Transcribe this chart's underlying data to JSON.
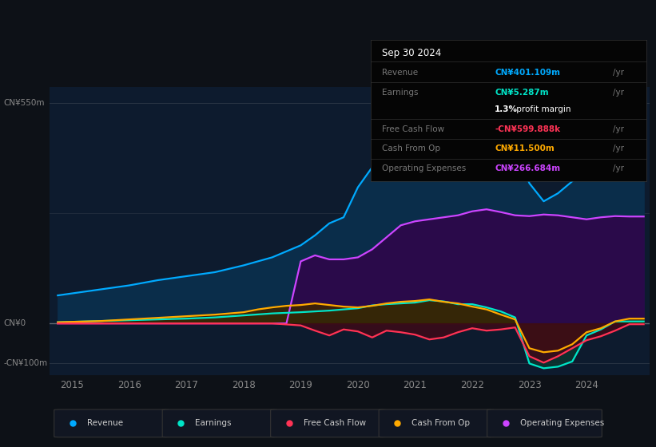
{
  "bg_color": "#0d1117",
  "plot_bg_color": "#0d1b2e",
  "ylabel_top": "CN¥550m",
  "ylabel_zero": "CN¥0",
  "ylabel_neg": "-CN¥100m",
  "x_years": [
    2015,
    2016,
    2017,
    2018,
    2019,
    2020,
    2021,
    2022,
    2023,
    2024
  ],
  "ylim": [
    -130,
    590
  ],
  "xlim": [
    2014.6,
    2025.1
  ],
  "info_box": {
    "date": "Sep 30 2024",
    "rows": [
      {
        "label": "Revenue",
        "value": "CN¥401.109m",
        "color": "#00aaff"
      },
      {
        "label": "Earnings",
        "value": "CN¥5.287m",
        "color": "#00e5c8"
      },
      {
        "label": "",
        "value": "1.3% profit margin",
        "color": "#ffffff"
      },
      {
        "label": "Free Cash Flow",
        "value": "-CN¥599.888k",
        "color": "#ff3355"
      },
      {
        "label": "Cash From Op",
        "value": "CN¥11.500m",
        "color": "#ffaa00"
      },
      {
        "label": "Operating Expenses",
        "value": "CN¥266.684m",
        "color": "#cc44ff"
      }
    ]
  },
  "legend": [
    {
      "label": "Revenue",
      "color": "#00aaff"
    },
    {
      "label": "Earnings",
      "color": "#00e5c8"
    },
    {
      "label": "Free Cash Flow",
      "color": "#ff3355"
    },
    {
      "label": "Cash From Op",
      "color": "#ffaa00"
    },
    {
      "label": "Operating Expenses",
      "color": "#cc44ff"
    }
  ],
  "revenue_x": [
    2014.75,
    2015.0,
    2015.5,
    2016.0,
    2016.5,
    2017.0,
    2017.5,
    2018.0,
    2018.5,
    2019.0,
    2019.25,
    2019.5,
    2019.75,
    2020.0,
    2020.25,
    2020.5,
    2020.75,
    2021.0,
    2021.25,
    2021.5,
    2021.75,
    2022.0,
    2022.25,
    2022.5,
    2022.75,
    2023.0,
    2023.25,
    2023.5,
    2023.75,
    2024.0,
    2024.25,
    2024.5,
    2024.75,
    2025.0
  ],
  "revenue_y": [
    70,
    75,
    85,
    95,
    108,
    118,
    128,
    145,
    165,
    195,
    220,
    250,
    265,
    340,
    390,
    430,
    455,
    475,
    495,
    515,
    545,
    555,
    530,
    490,
    440,
    350,
    305,
    325,
    355,
    395,
    415,
    415,
    401,
    401
  ],
  "revenue_color": "#00aaff",
  "revenue_fill": "#0a2d4a",
  "op_exp_x": [
    2014.75,
    2015.0,
    2015.5,
    2016.0,
    2016.5,
    2017.0,
    2017.5,
    2018.0,
    2018.5,
    2018.75,
    2019.0,
    2019.25,
    2019.5,
    2019.75,
    2020.0,
    2020.25,
    2020.5,
    2020.75,
    2021.0,
    2021.25,
    2021.5,
    2021.75,
    2022.0,
    2022.25,
    2022.5,
    2022.75,
    2023.0,
    2023.25,
    2023.5,
    2023.75,
    2024.0,
    2024.25,
    2024.5,
    2024.75,
    2025.0
  ],
  "op_exp_y": [
    0,
    0,
    0,
    0,
    0,
    0,
    0,
    0,
    0,
    0,
    155,
    170,
    160,
    160,
    165,
    185,
    215,
    245,
    255,
    260,
    265,
    270,
    280,
    285,
    278,
    270,
    268,
    272,
    270,
    265,
    260,
    265,
    268,
    267,
    267
  ],
  "op_exp_color": "#cc44ff",
  "op_exp_fill": "#2a0a4a",
  "earnings_x": [
    2014.75,
    2015.0,
    2015.5,
    2016.0,
    2016.5,
    2017.0,
    2017.5,
    2018.0,
    2018.5,
    2019.0,
    2019.5,
    2020.0,
    2020.25,
    2020.5,
    2020.75,
    2021.0,
    2021.25,
    2021.5,
    2021.75,
    2022.0,
    2022.25,
    2022.5,
    2022.75,
    2023.0,
    2023.25,
    2023.5,
    2023.75,
    2024.0,
    2024.25,
    2024.5,
    2024.75,
    2025.0
  ],
  "earnings_y": [
    3,
    4,
    6,
    8,
    10,
    12,
    15,
    20,
    25,
    28,
    32,
    38,
    45,
    48,
    50,
    52,
    58,
    55,
    48,
    48,
    40,
    30,
    15,
    -100,
    -112,
    -108,
    -95,
    -30,
    -15,
    5,
    5,
    5
  ],
  "earnings_color": "#00e5c8",
  "earnings_fill": "#0a3530",
  "cop_x": [
    2014.75,
    2015.0,
    2015.5,
    2016.0,
    2016.5,
    2017.0,
    2017.5,
    2018.0,
    2018.25,
    2018.5,
    2018.75,
    2019.0,
    2019.25,
    2019.5,
    2019.75,
    2020.0,
    2020.25,
    2020.5,
    2020.75,
    2021.0,
    2021.25,
    2021.5,
    2021.75,
    2022.0,
    2022.25,
    2022.5,
    2022.75,
    2023.0,
    2023.25,
    2023.5,
    2023.75,
    2024.0,
    2024.25,
    2024.5,
    2024.75,
    2025.0
  ],
  "cop_y": [
    3,
    4,
    6,
    10,
    14,
    18,
    22,
    28,
    35,
    40,
    44,
    46,
    50,
    46,
    42,
    40,
    44,
    50,
    54,
    56,
    60,
    54,
    50,
    42,
    35,
    22,
    10,
    -62,
    -72,
    -68,
    -52,
    -22,
    -12,
    5,
    12,
    12
  ],
  "cop_color": "#ffaa00",
  "cop_fill": "#3d2500",
  "fcf_x": [
    2014.75,
    2015.0,
    2015.5,
    2016.0,
    2016.5,
    2017.0,
    2017.5,
    2018.0,
    2018.5,
    2019.0,
    2019.25,
    2019.5,
    2019.75,
    2020.0,
    2020.25,
    2020.5,
    2020.75,
    2021.0,
    2021.25,
    2021.5,
    2021.75,
    2022.0,
    2022.25,
    2022.5,
    2022.75,
    2023.0,
    2023.25,
    2023.5,
    2023.75,
    2024.0,
    2024.25,
    2024.5,
    2024.75,
    2025.0
  ],
  "fcf_y": [
    0,
    0,
    0,
    0,
    0,
    0,
    0,
    0,
    0,
    -5,
    -18,
    -30,
    -15,
    -20,
    -35,
    -18,
    -22,
    -28,
    -40,
    -35,
    -22,
    -12,
    -18,
    -15,
    -10,
    -82,
    -98,
    -82,
    -62,
    -42,
    -32,
    -18,
    -2,
    -2
  ],
  "fcf_color": "#ff3355",
  "fcf_fill": "#3d0a18"
}
